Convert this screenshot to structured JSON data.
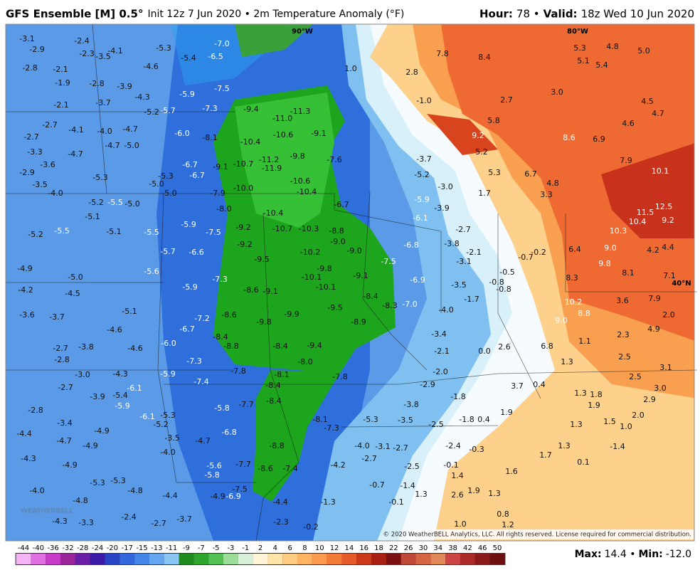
{
  "header": {
    "model": "GFS Ensemble [M] 0.5°",
    "details": "Init 12z 7 Jun 2020 • 2m Temperature Anomaly (°F)",
    "hour_label": "Hour:",
    "hour": "78 •",
    "valid_label": "Valid:",
    "valid": "18z Wed 10 Jun 2020"
  },
  "map": {
    "meridians": [
      "90°W",
      "80°W"
    ],
    "parallel": "40°N",
    "logo": "WEATHERBELL",
    "labels": [
      "-3.1",
      "-2.9",
      "-2.4",
      "-2.3",
      "-3.5",
      "-4.1",
      "-5.3",
      "-4.6",
      "-5.4",
      "-7.0",
      "-6.5",
      "-2.8",
      "-2.1",
      "-1.9",
      "-2.8",
      "-3.9",
      "-4.3",
      "-5.9",
      "-7.5",
      "-2.1",
      "-3.7",
      "-5.2",
      "-5.7",
      "-7.3",
      "-9.4",
      "-11.3",
      "-2.7",
      "-4.1",
      "-4.0",
      "-4.7",
      "-6.0",
      "-8.1",
      "-11.0",
      "-10.6",
      "-9.1",
      "-2.7",
      "-4.7",
      "-5.0",
      "-10.4",
      "-3.3",
      "-4.7",
      "-6.7",
      "-9.1",
      "-10.7",
      "-11.2",
      "-9.8",
      "-7.6",
      "-3.6",
      "-11.9",
      "-2.9",
      "-5.3",
      "-5.3",
      "-6.7",
      "-10.6",
      "-3.5",
      "-5.0",
      "-10.0",
      "-10.4",
      "-4.0",
      "-5.0",
      "-7.9",
      "-6.7",
      "-5.2",
      "-5.5",
      "-5.0",
      "-8.0",
      "-10.4",
      "-5.1",
      "-5.9",
      "-9.2",
      "-10.7",
      "-10.3",
      "-8.8",
      "-5.2",
      "-5.5",
      "-5.1",
      "-5.5",
      "-7.5",
      "-9.0",
      "-9.2",
      "-5.7",
      "-6.6",
      "-10.2",
      "-9.0",
      "-4.9",
      "-5.6",
      "-9.5",
      "-9.8",
      "-5.0",
      "-7.3",
      "-10.1",
      "-9.1",
      "-4.2",
      "-4.5",
      "-5.9",
      "-8.6",
      "-9.1",
      "-10.1",
      "-8.4",
      "-3.6",
      "-3.7",
      "-5.1",
      "-7.2",
      "-8.6",
      "-9.9",
      "-9.5",
      "-8.3",
      "-4.6",
      "-6.7",
      "-9.8",
      "-8.9",
      "-8.4",
      "-2.7",
      "-3.8",
      "-4.6",
      "-6.0",
      "-8.8",
      "-8.4",
      "-9.4",
      "-2.8",
      "-7.3",
      "-8.0",
      "-3.0",
      "-4.3",
      "-5.9",
      "-7.8",
      "-8.1",
      "-7.8",
      "-2.7",
      "-6.1",
      "-7.4",
      "-8.4",
      "-7.5",
      "-6.8",
      "-6.9",
      "-7.0",
      "-3.7",
      "-5.2",
      "-3.0",
      "-5.9",
      "-6.1",
      "-3.9",
      "-2.7",
      "-3.8",
      "-3.1",
      "-2.1",
      "-3.5",
      "-1.7",
      "-4.0",
      "7.8",
      "8.4",
      "2.8",
      "1.0",
      "-1.0",
      "2.7",
      "3.0",
      "5.3",
      "4.8",
      "5.0",
      "5.1",
      "5.4",
      "4.5",
      "4.6",
      "4.7",
      "5.8",
      "9.2",
      "8.6",
      "6.9",
      "5.2",
      "7.9",
      "10.1",
      "5.3",
      "6.7",
      "4.8",
      "3.3",
      "1.7",
      "11.5",
      "12.5",
      "10.4",
      "9.2",
      "10.3",
      "6.4",
      "9.0",
      "4.2",
      "4.4",
      "9.8",
      "8.1",
      "7.1",
      "8.3",
      "10.2",
      "8.8",
      "9.0",
      "3.6",
      "7.9",
      "2.0",
      "4.9",
      "2.3",
      "1.1",
      "2.6",
      "6.8",
      "0.0",
      "2.5",
      "3.1",
      "1.3",
      "2.5",
      "3.7",
      "0.4",
      "1.3",
      "1.8",
      "3.0",
      "2.9",
      "1.9",
      "2.0",
      "1.9",
      "1.5",
      "1.0",
      "1.3",
      "1.7",
      "1.3",
      "0.1",
      "1.4",
      "2.6",
      "1.9",
      "1.3",
      "1.3",
      "0.8",
      "1.2",
      "1.0",
      "-1.4",
      "-1.8",
      "0.4",
      "-0.7",
      "-0.2",
      "-0.5",
      "-0.8",
      "-0.8",
      "-1.8",
      "-2.0",
      "-2.1",
      "-3.4",
      "-2.9",
      "-3.8",
      "-3.5",
      "-2.5",
      "-5.3",
      "-7.3",
      "-8.1",
      "-4.0",
      "-3.1",
      "-2.7",
      "-2.7",
      "-4.2",
      "-2.5",
      "-0.7",
      "-1.4",
      "-0.1",
      "-1.3",
      "-2.4",
      "-0.3",
      "-0.1",
      "1.6",
      "-0.2",
      "-2.3",
      "-4.4",
      "-4.9",
      "-6.9",
      "-7.5",
      "-7.7",
      "-8.6",
      "-7.4",
      "-8.8",
      "-6.8",
      "-5.8",
      "-7.7",
      "-8.4",
      "-5.6",
      "-5.8",
      "-4.7",
      "-3.5",
      "-4.0",
      "-5.2",
      "-5.3",
      "-6.1",
      "-5.4",
      "-5.9",
      "-3.9",
      "-2.8",
      "-3.4",
      "-4.9",
      "-4.4",
      "-4.7",
      "-4.9",
      "-4.3",
      "-4.9",
      "-5.3",
      "-5.3",
      "-4.8",
      "-4.0",
      "-4.8",
      "-4.4",
      "-4.3",
      "-3.3",
      "-2.4",
      "-2.7",
      "-3.7"
    ]
  },
  "colorbar": {
    "ticks": [
      -44,
      -40,
      -36,
      -32,
      -28,
      -24,
      -20,
      -17,
      -15,
      -13,
      -11,
      -9,
      -7,
      -5,
      -3,
      -1,
      2,
      4,
      6,
      8,
      10,
      12,
      14,
      16,
      18,
      22,
      26,
      30,
      34,
      38,
      42,
      46,
      50
    ],
    "colors": [
      "#f4b4f4",
      "#e070e0",
      "#c83cc8",
      "#9a249a",
      "#6a1ea8",
      "#3a18a8",
      "#2844c4",
      "#3466dc",
      "#4486e8",
      "#66a6f0",
      "#8cc6f4",
      "#1e8c1e",
      "#2ea62e",
      "#52c052",
      "#9ade9a",
      "#d8f0d8",
      "#fff4d8",
      "#ffe4a8",
      "#ffcc84",
      "#ffb464",
      "#fc9a4e",
      "#f47a38",
      "#e45a28",
      "#cc3a1a",
      "#a82012",
      "#7c1010",
      "#c04838",
      "#d46646",
      "#e08858",
      "#cc4444",
      "#ac2a2a",
      "#8c1a1a",
      "#6c1010"
    ]
  },
  "footer": {
    "copyright": "© 2020 WeatherBELL Analytics, LLC. All rights reserved. License required for commercial distribution.",
    "max_label": "Max:",
    "max": "14.4 •",
    "min_label": "Min:",
    "min": "-12.0"
  }
}
